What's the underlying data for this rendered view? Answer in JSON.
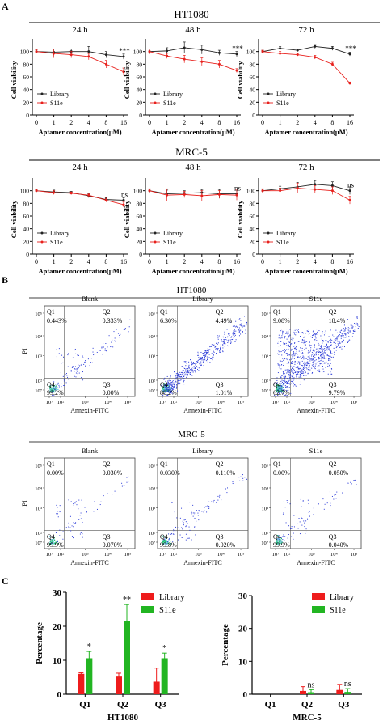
{
  "panel_labels": {
    "A": "A",
    "B": "B",
    "C": "C"
  },
  "section_titles": {
    "a_ht1080": "HT1080",
    "a_mrc5": "MRC-5",
    "b_ht1080": "HT1080",
    "b_mrc5": "MRC-5"
  },
  "colors": {
    "library_line": "#222222",
    "s11e_line": "#e8201c",
    "bar_library": "#ee1c1c",
    "bar_s11e": "#22b522",
    "density_low": "#2b3bd8",
    "density_high": "#21c46e"
  },
  "chart_data": [
    {
      "id": "ht1080_24h",
      "type": "line",
      "title": "24 h",
      "xlabel": "Aptamer concentration(μM)",
      "ylabel": "Cell viability",
      "x": [
        0,
        1,
        2,
        4,
        8,
        16
      ],
      "categories": [
        "0",
        "1",
        "2",
        "4",
        "8",
        "16"
      ],
      "ylim": [
        0,
        120
      ],
      "yticks": [
        0,
        20,
        40,
        60,
        80,
        100
      ],
      "legend": [
        "Library",
        "S11e"
      ],
      "annotation": "***",
      "series": [
        {
          "name": "Library",
          "values": [
            100,
            99,
            100,
            100,
            95,
            92
          ],
          "err": [
            3,
            5,
            4,
            8,
            5,
            4
          ]
        },
        {
          "name": "S11e",
          "values": [
            100,
            97,
            95,
            92,
            80,
            68
          ],
          "err": [
            3,
            7,
            5,
            5,
            6,
            6
          ]
        }
      ]
    },
    {
      "id": "ht1080_48h",
      "type": "line",
      "title": "48 h",
      "xlabel": "Aptamer concentration(μM)",
      "ylabel": "Cell viability",
      "x": [
        0,
        1,
        2,
        4,
        8,
        16
      ],
      "categories": [
        "0",
        "1",
        "2",
        "4",
        "8",
        "16"
      ],
      "ylim": [
        0,
        120
      ],
      "yticks": [
        0,
        20,
        40,
        60,
        80,
        100
      ],
      "legend": [
        "Library",
        "S11e"
      ],
      "annotation": "***",
      "series": [
        {
          "name": "Library",
          "values": [
            100,
            101,
            106,
            103,
            98,
            96
          ],
          "err": [
            4,
            5,
            9,
            7,
            4,
            4
          ]
        },
        {
          "name": "S11e",
          "values": [
            100,
            93,
            88,
            84,
            80,
            70
          ],
          "err": [
            4,
            4,
            6,
            6,
            6,
            3
          ]
        }
      ]
    },
    {
      "id": "ht1080_72h",
      "type": "line",
      "title": "72 h",
      "xlabel": "Aptamer concentration(μM)",
      "ylabel": "Cell viability",
      "x": [
        0,
        1,
        2,
        4,
        8,
        16
      ],
      "categories": [
        "0",
        "1",
        "2",
        "4",
        "8",
        "16"
      ],
      "ylim": [
        0,
        120
      ],
      "yticks": [
        0,
        20,
        40,
        60,
        80,
        100
      ],
      "legend": [
        "Library",
        "S11e"
      ],
      "annotation": "***",
      "series": [
        {
          "name": "Library",
          "values": [
            100,
            105,
            102,
            108,
            105,
            96
          ],
          "err": [
            2,
            3,
            2,
            3,
            3,
            3
          ]
        },
        {
          "name": "S11e",
          "values": [
            100,
            97,
            95,
            91,
            80,
            50
          ],
          "err": [
            2,
            3,
            2,
            3,
            3,
            2
          ]
        }
      ]
    },
    {
      "id": "mrc5_24h",
      "type": "line",
      "title": "24 h",
      "xlabel": "Aptamer concentration(μM)",
      "ylabel": "Cell viability",
      "x": [
        0,
        1,
        2,
        4,
        8,
        16
      ],
      "categories": [
        "0",
        "1",
        "2",
        "4",
        "8",
        "16"
      ],
      "ylim": [
        0,
        120
      ],
      "yticks": [
        0,
        20,
        40,
        60,
        80,
        100
      ],
      "legend": [
        "Library",
        "S11e"
      ],
      "annotation": "ns",
      "series": [
        {
          "name": "Library",
          "values": [
            100,
            98,
            97,
            92,
            86,
            85
          ],
          "err": [
            2,
            3,
            2,
            3,
            3,
            4
          ]
        },
        {
          "name": "S11e",
          "values": [
            100,
            97,
            96,
            93,
            85,
            78
          ],
          "err": [
            2,
            3,
            2,
            3,
            3,
            4
          ]
        }
      ]
    },
    {
      "id": "mrc5_48h",
      "type": "line",
      "title": "48 h",
      "xlabel": "Aptamer concentration(μM)",
      "ylabel": "Cell viability",
      "x": [
        0,
        1,
        2,
        4,
        8,
        16
      ],
      "categories": [
        "0",
        "1",
        "2",
        "4",
        "8",
        "16"
      ],
      "ylim": [
        0,
        120
      ],
      "yticks": [
        0,
        20,
        40,
        60,
        80,
        100
      ],
      "legend": [
        "Library",
        "S11e"
      ],
      "annotation": "ns",
      "series": [
        {
          "name": "Library",
          "values": [
            100,
            95,
            96,
            97,
            95,
            95
          ],
          "err": [
            3,
            6,
            4,
            5,
            7,
            6
          ]
        },
        {
          "name": "S11e",
          "values": [
            100,
            93,
            94,
            92,
            94,
            93
          ],
          "err": [
            3,
            10,
            5,
            8,
            6,
            8
          ]
        }
      ]
    },
    {
      "id": "mrc5_72h",
      "type": "line",
      "title": "72 h",
      "xlabel": "Aptamer concentration(μM)",
      "ylabel": "Cell viability",
      "x": [
        0,
        1,
        2,
        4,
        8,
        16
      ],
      "categories": [
        "0",
        "1",
        "2",
        "4",
        "8",
        "16"
      ],
      "ylim": [
        0,
        120
      ],
      "yticks": [
        0,
        20,
        40,
        60,
        80,
        100
      ],
      "legend": [
        "Library",
        "S11e"
      ],
      "annotation": "ns",
      "series": [
        {
          "name": "Library",
          "values": [
            100,
            103,
            106,
            110,
            108,
            100
          ],
          "err": [
            3,
            4,
            7,
            6,
            6,
            6
          ]
        },
        {
          "name": "S11e",
          "values": [
            100,
            100,
            104,
            102,
            100,
            85
          ],
          "err": [
            3,
            4,
            8,
            6,
            6,
            6
          ]
        }
      ]
    },
    {
      "id": "flow",
      "type": "scatter",
      "xlabel": "Annexin-FITC",
      "ylabel": "PI",
      "yticks": [
        "10⁷",
        "10²",
        "10³",
        "10⁴",
        "10⁵"
      ],
      "xticks": [
        "10⁷",
        "10²",
        "10³",
        "10⁴",
        "10⁵"
      ],
      "plots": [
        {
          "group": "HT1080",
          "title": "Blank",
          "density": 0.12,
          "q": {
            "Q1": "0.443%",
            "Q2": "0.333%",
            "Q3": "0.00%",
            "Q4": "99.2%"
          }
        },
        {
          "group": "HT1080",
          "title": "Library",
          "density": 0.6,
          "q": {
            "Q1": "6.30%",
            "Q2": "4.49%",
            "Q3": "1.01%",
            "Q4": "88.2%"
          }
        },
        {
          "group": "HT1080",
          "title": "S11e",
          "density": 1.0,
          "q": {
            "Q1": "9.08%",
            "Q2": "18.4%",
            "Q3": "9.79%",
            "Q4": "62.7%"
          }
        },
        {
          "group": "MRC-5",
          "title": "Blank",
          "density": 0.05,
          "q": {
            "Q1": "0.00%",
            "Q2": "0.030%",
            "Q3": "0.070%",
            "Q4": "99.9%"
          }
        },
        {
          "group": "MRC-5",
          "title": "Library",
          "density": 0.08,
          "q": {
            "Q1": "0.030%",
            "Q2": "0.110%",
            "Q3": "0.020%",
            "Q4": "99.8%"
          }
        },
        {
          "group": "MRC-5",
          "title": "S11e",
          "density": 0.06,
          "q": {
            "Q1": "0.00%",
            "Q2": "0.050%",
            "Q3": "0.040%",
            "Q4": "99.9%"
          }
        }
      ]
    },
    {
      "id": "bars_ht1080",
      "type": "bar",
      "title": "HT1080",
      "ylabel": "Percentage",
      "categories": [
        "Q1",
        "Q2",
        "Q3"
      ],
      "ylim": [
        0,
        30
      ],
      "yticks": [
        0,
        10,
        20,
        30
      ],
      "legend": [
        "Library",
        "S11e"
      ],
      "series": [
        {
          "name": "Library",
          "values": [
            6.0,
            5.2,
            3.7
          ],
          "err": [
            0.3,
            1.0,
            4.0
          ]
        },
        {
          "name": "S11e",
          "values": [
            10.6,
            21.6,
            10.6
          ],
          "err": [
            2.0,
            4.8,
            1.5
          ]
        }
      ],
      "annotations": [
        "*",
        "**",
        "*"
      ]
    },
    {
      "id": "bars_mrc5",
      "type": "bar",
      "title": "MRC-5",
      "ylabel": "Percentage",
      "categories": [
        "Q1",
        "Q2",
        "Q3"
      ],
      "ylim": [
        0,
        30
      ],
      "yticks": [
        0,
        10,
        20,
        30
      ],
      "legend": [
        "Library",
        "S11e"
      ],
      "series": [
        {
          "name": "Library",
          "values": [
            0.0,
            1.0,
            1.3
          ],
          "err": [
            0,
            1.3,
            1.7
          ]
        },
        {
          "name": "S11e",
          "values": [
            0.0,
            0.6,
            0.7
          ],
          "err": [
            0,
            0.8,
            1.0
          ]
        }
      ],
      "annotations": [
        "",
        "ns",
        "ns"
      ]
    }
  ]
}
